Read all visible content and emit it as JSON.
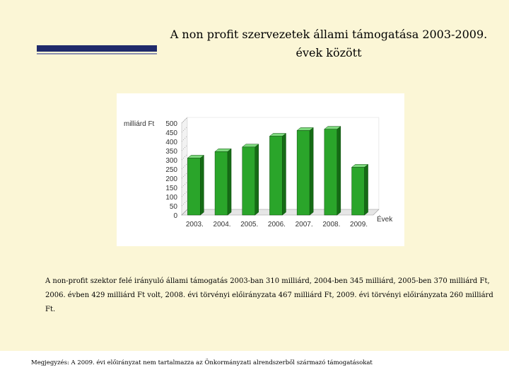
{
  "slide": {
    "title_line1": "A non profit szervezetek állami támogatása 2003-2009.",
    "title_line2": "évek között",
    "description": "A non-profit szektor felé irányuló állami támogatás 2003-ban 310 milliárd, 2004-ben 345 milliárd, 2005-ben 370 milliárd Ft, 2006. évben 429 milliárd Ft volt, 2008. évi törvényi előirányzata 467 milliárd Ft, 2009. évi törvényi előirányzata 260 milliárd Ft.",
    "note": "Megjegyzés: A 2009. évi előirányzat nem tartalmazza az Önkormányzati alrendszerből származó támogatásokat"
  },
  "colors": {
    "bar_front": "#2aa52a",
    "bar_side": "#156b15",
    "bar_top": "#7ed97e",
    "background": "#fbf6d6",
    "accent": "#1f2a6b"
  },
  "chart_data": {
    "type": "bar",
    "categories": [
      "2003.",
      "2004.",
      "2005.",
      "2006.",
      "2007.",
      "2008.",
      "2009."
    ],
    "values": [
      310,
      345,
      370,
      429,
      460,
      467,
      260
    ],
    "ylabel": "milliárd Ft",
    "xlabel": "Évek",
    "ylim": [
      0,
      500
    ],
    "yticks": [
      0,
      50,
      100,
      150,
      200,
      250,
      300,
      350,
      400,
      450,
      500
    ],
    "grid": false,
    "legend": "none"
  }
}
